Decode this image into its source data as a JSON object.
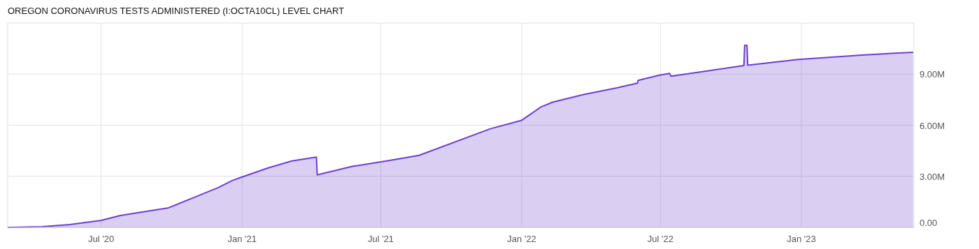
{
  "chart_data": {
    "type": "area",
    "title": "OREGON CORONAVIRUS TESTS ADMINISTERED (I:OCTA10CL) LEVEL CHART",
    "x": [
      "2020-03-01",
      "2020-04-15",
      "2020-05-21",
      "2020-07-01",
      "2020-07-26",
      "2020-09-27",
      "2020-11-02",
      "2020-12-01",
      "2020-12-19",
      "2021-01-01",
      "2021-02-04",
      "2021-03-07",
      "2021-04-08",
      "2021-04-09",
      "2021-05-25",
      "2021-07-14",
      "2021-08-20",
      "2021-11-21",
      "2022-01-01",
      "2022-01-26",
      "2022-02-11",
      "2022-03-24",
      "2022-05-04",
      "2022-06-01",
      "2022-06-02",
      "2022-06-30",
      "2022-07-13",
      "2022-07-15",
      "2022-10-18",
      "2022-10-19",
      "2022-10-22",
      "2022-10-23",
      "2022-12-28",
      "2023-03-24",
      "2023-05-27"
    ],
    "series": [
      {
        "color": "#6c3fd1",
        "values": [
          0,
          40000,
          160000,
          410000,
          700000,
          1150000,
          1810000,
          2340000,
          2750000,
          2960000,
          3490000,
          3900000,
          4130000,
          3080000,
          3580000,
          3940000,
          4230000,
          5790000,
          6290000,
          7070000,
          7360000,
          7810000,
          8180000,
          8470000,
          8630000,
          8940000,
          9040000,
          8880000,
          9500000,
          10690000,
          10690000,
          9520000,
          9860000,
          10130000,
          10280000
        ]
      }
    ],
    "xlim": [
      "2020-03-01",
      "2023-05-28"
    ],
    "xticks": [
      {
        "value": "2020-07-01",
        "label": "Jul '20"
      },
      {
        "value": "2021-01-01",
        "label": "Jan '21"
      },
      {
        "value": "2021-07-01",
        "label": "Jul '21"
      },
      {
        "value": "2022-01-01",
        "label": "Jan '22"
      },
      {
        "value": "2022-07-01",
        "label": "Jul '22"
      },
      {
        "value": "2023-01-01",
        "label": "Jan '23"
      }
    ],
    "ylim": [
      0,
      12000000
    ],
    "yticks": [
      {
        "value": 0,
        "label": "0.00"
      },
      {
        "value": 3000000,
        "label": "3.00M"
      },
      {
        "value": 6000000,
        "label": "6.00M"
      },
      {
        "value": 9000000,
        "label": "9.00M"
      }
    ],
    "grid": true
  }
}
